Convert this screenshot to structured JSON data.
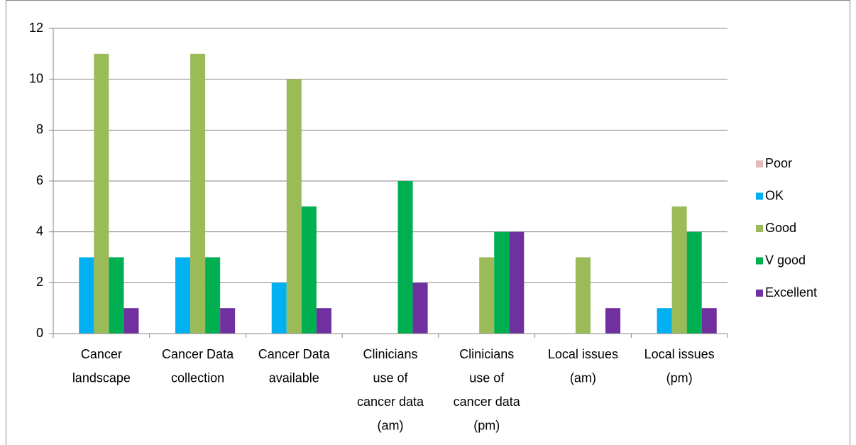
{
  "chart_data": {
    "type": "bar",
    "categories": [
      "Cancer landscape",
      "Cancer Data collection",
      "Cancer Data available",
      "Clinicians use of cancer data (am)",
      "Clinicians use of cancer data (pm)",
      "Local issues (am)",
      "Local issues (pm)"
    ],
    "series": [
      {
        "name": "Poor",
        "color": "#e6b9b8",
        "values": [
          0,
          0,
          0,
          0,
          0,
          0,
          0
        ]
      },
      {
        "name": "OK",
        "color": "#00b0f0",
        "values": [
          3,
          3,
          2,
          0,
          0,
          0,
          1
        ]
      },
      {
        "name": "Good",
        "color": "#9bbb59",
        "values": [
          11,
          11,
          10,
          0,
          3,
          3,
          5
        ]
      },
      {
        "name": "V good",
        "color": "#00b050",
        "values": [
          3,
          3,
          5,
          6,
          4,
          0,
          4
        ]
      },
      {
        "name": "Excellent",
        "color": "#7030a0",
        "values": [
          1,
          1,
          1,
          2,
          4,
          1,
          1
        ]
      }
    ],
    "ylim": [
      0,
      12
    ],
    "yticks": [
      0,
      2,
      4,
      6,
      8,
      10,
      12
    ],
    "grid": true,
    "legend": "right"
  }
}
